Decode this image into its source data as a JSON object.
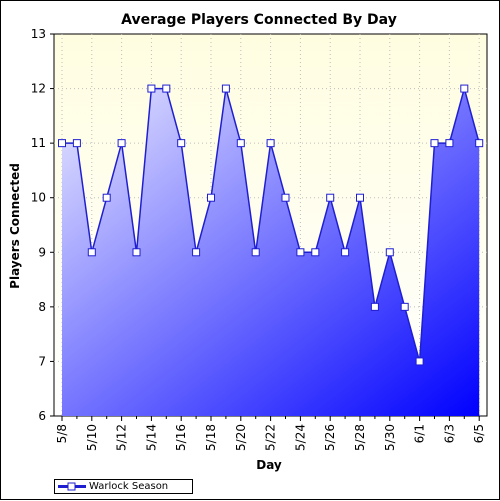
{
  "chart_data": {
    "type": "area",
    "title": "Average Players Connected By Day",
    "xlabel": "Day",
    "ylabel": "Players Connected",
    "ylim": [
      6,
      13
    ],
    "yticks": [
      6,
      7,
      8,
      9,
      10,
      11,
      12,
      13
    ],
    "x": [
      "5/8",
      "5/9",
      "5/10",
      "5/11",
      "5/12",
      "5/13",
      "5/14",
      "5/15",
      "5/16",
      "5/17",
      "5/18",
      "5/19",
      "5/20",
      "5/21",
      "5/22",
      "5/23",
      "5/24",
      "5/25",
      "5/26",
      "5/27",
      "5/28",
      "5/29",
      "5/30",
      "5/31",
      "6/1",
      "6/2",
      "6/3",
      "6/4",
      "6/5"
    ],
    "xtick_labels": [
      "5/8",
      "5/10",
      "5/12",
      "5/14",
      "5/16",
      "5/18",
      "5/20",
      "5/22",
      "5/24",
      "5/26",
      "5/28",
      "5/30",
      "6/1",
      "6/3",
      "6/5"
    ],
    "series": [
      {
        "name": "Warlock Season",
        "values": [
          11,
          11,
          9,
          10,
          11,
          9,
          12,
          12,
          11,
          9,
          10,
          12,
          11,
          9,
          11,
          10,
          9,
          9,
          10,
          9,
          10,
          8,
          9,
          8,
          7,
          11,
          11,
          12,
          11
        ]
      }
    ],
    "grid": true,
    "legend": "bottom-left",
    "colors": {
      "line": "#1f1fd0",
      "fill_light": "#e8e8ff",
      "fill_dark": "#0000ff",
      "plot_bg_top": "#fffde0",
      "plot_bg_bottom": "#ffffff",
      "marker_fill": "#ffffff"
    }
  }
}
